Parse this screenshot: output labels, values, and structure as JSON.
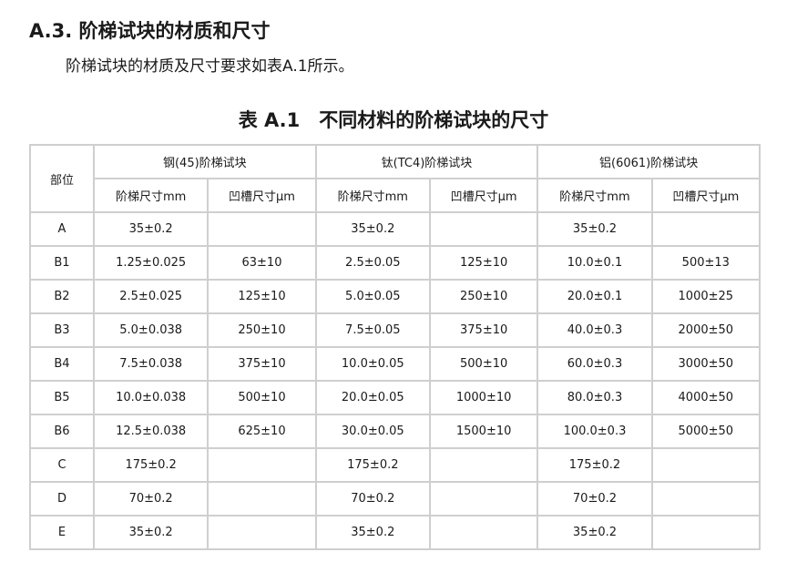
{
  "section": {
    "heading": "A.3. 阶梯试块的材质和尺寸",
    "text": "阶梯试块的材质及尺寸要求如表A.1所示。"
  },
  "table": {
    "caption": "表 A.1　不同材料的阶梯试块的尺寸",
    "part_header": "部位",
    "groups": [
      "钢(45)阶梯试块",
      "钛(TC4)阶梯试块",
      "铝(6061)阶梯试块"
    ],
    "subheaders": [
      "阶梯尺寸mm",
      "凹槽尺寸μm",
      "阶梯尺寸mm",
      "凹槽尺寸μm",
      "阶梯尺寸mm",
      "凹槽尺寸μm"
    ],
    "rows": [
      [
        "A",
        "35±0.2",
        "",
        "35±0.2",
        "",
        "35±0.2",
        ""
      ],
      [
        "B1",
        "1.25±0.025",
        "63±10",
        "2.5±0.05",
        "125±10",
        "10.0±0.1",
        "500±13"
      ],
      [
        "B2",
        "2.5±0.025",
        "125±10",
        "5.0±0.05",
        "250±10",
        "20.0±0.1",
        "1000±25"
      ],
      [
        "B3",
        "5.0±0.038",
        "250±10",
        "7.5±0.05",
        "375±10",
        "40.0±0.3",
        "2000±50"
      ],
      [
        "B4",
        "7.5±0.038",
        "375±10",
        "10.0±0.05",
        "500±10",
        "60.0±0.3",
        "3000±50"
      ],
      [
        "B5",
        "10.0±0.038",
        "500±10",
        "20.0±0.05",
        "1000±10",
        "80.0±0.3",
        "4000±50"
      ],
      [
        "B6",
        "12.5±0.038",
        "625±10",
        "30.0±0.05",
        "1500±10",
        "100.0±0.3",
        "5000±50"
      ],
      [
        "C",
        "175±0.2",
        "",
        "175±0.2",
        "",
        "175±0.2",
        ""
      ],
      [
        "D",
        "70±0.2",
        "",
        "70±0.2",
        "",
        "70±0.2",
        ""
      ],
      [
        "E",
        "35±0.2",
        "",
        "35±0.2",
        "",
        "35±0.2",
        ""
      ]
    ]
  }
}
